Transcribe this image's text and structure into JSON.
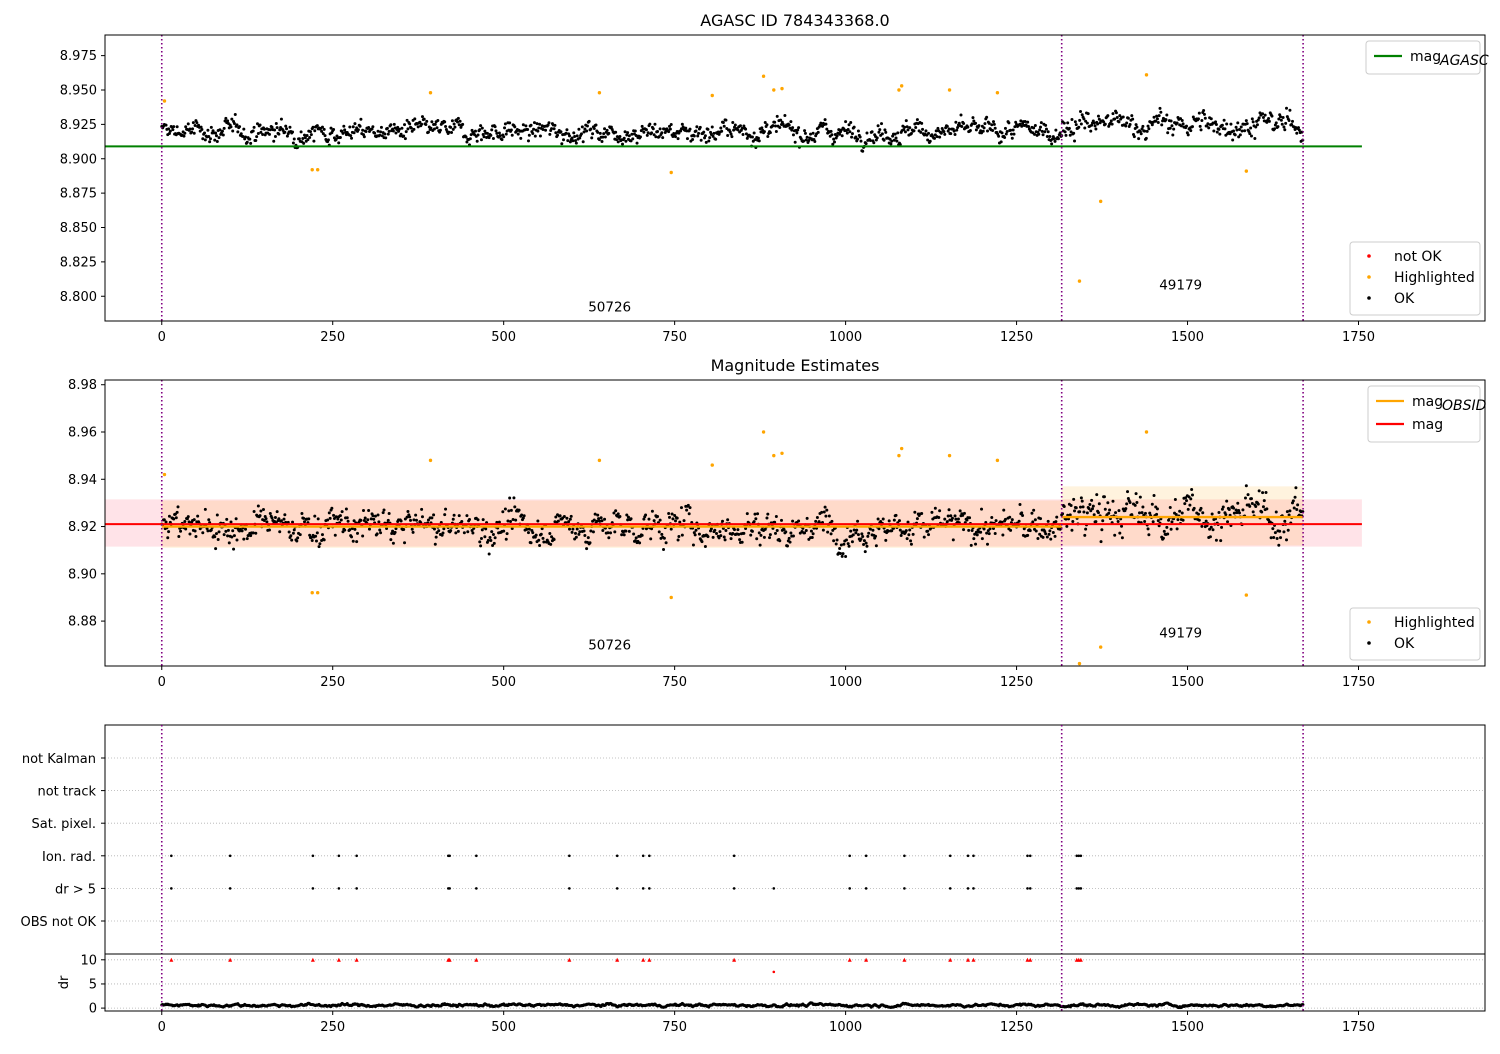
{
  "chart_data": [
    {
      "type": "scatter",
      "title": "AGASC ID 784343368.0",
      "xlim": [
        -83,
        1935
      ],
      "ylim": [
        8.782,
        8.99
      ],
      "xticks": [
        0,
        250,
        500,
        750,
        1000,
        1250,
        1500,
        1750
      ],
      "yticks": [
        8.8,
        8.825,
        8.85,
        8.875,
        8.9,
        8.925,
        8.95,
        8.975
      ],
      "yticks_labels": [
        "8.800",
        "8.825",
        "8.850",
        "8.875",
        "8.900",
        "8.925",
        "8.950",
        "8.975"
      ],
      "vlines": [
        0,
        1316,
        1669
      ],
      "vline_color": "#800080",
      "obsid_labels": [
        {
          "text": "50726",
          "x": 655,
          "y": 8.789
        },
        {
          "text": "49179",
          "x": 1490,
          "y": 8.805
        }
      ],
      "reference_line": {
        "name": "mag_AGASC",
        "legend_label": "mag",
        "legend_sub": "AGASC",
        "value": 8.909,
        "x": [
          -83,
          1755
        ],
        "color": "#008000"
      },
      "legend_lines": [
        {
          "label": "mag",
          "sub": "AGASC",
          "color": "#008000"
        }
      ],
      "legend_points": [
        {
          "label": "not OK",
          "color": "#ff0000"
        },
        {
          "label": "Highlighted",
          "color": "#ffa500"
        },
        {
          "label": "OK",
          "color": "#000000"
        }
      ],
      "series": [
        {
          "name": "OK",
          "color": "#000000",
          "generated": {
            "segments": [
              {
                "x0": 0,
                "x1": 1316,
                "step": 1.25,
                "mean": 8.92,
                "amp": 0.009
              },
              {
                "x0": 1316,
                "x1": 1669,
                "step": 1.25,
                "mean": 8.925,
                "amp": 0.011
              }
            ]
          }
        },
        {
          "name": "Highlighted",
          "color": "#ffa500",
          "points": [
            [
              4,
              8.942
            ],
            [
              220,
              8.892
            ],
            [
              228,
              8.892
            ],
            [
              393,
              8.948
            ],
            [
              640,
              8.948
            ],
            [
              745,
              8.89
            ],
            [
              805,
              8.946
            ],
            [
              880,
              8.96
            ],
            [
              895,
              8.95
            ],
            [
              907,
              8.951
            ],
            [
              1078,
              8.95
            ],
            [
              1082,
              8.953
            ],
            [
              1152,
              8.95
            ],
            [
              1222,
              8.948
            ],
            [
              1342,
              8.811
            ],
            [
              1373,
              8.869
            ],
            [
              1440,
              8.961
            ],
            [
              1586,
              8.891
            ]
          ]
        }
      ]
    },
    {
      "type": "scatter",
      "title": "Magnitude Estimates",
      "xlim": [
        -83,
        1935
      ],
      "ylim": [
        8.861,
        8.982
      ],
      "xticks": [
        0,
        250,
        500,
        750,
        1000,
        1250,
        1500,
        1750
      ],
      "yticks": [
        8.88,
        8.9,
        8.92,
        8.94,
        8.96,
        8.98
      ],
      "yticks_labels": [
        "8.88",
        "8.90",
        "8.92",
        "8.94",
        "8.96",
        "8.98"
      ],
      "vlines": [
        0,
        1316,
        1669
      ],
      "vline_color": "#800080",
      "obsid_labels": [
        {
          "text": "50726",
          "x": 655,
          "y": 8.868
        },
        {
          "text": "49179",
          "x": 1490,
          "y": 8.873
        }
      ],
      "mag_line": {
        "value": 8.921,
        "band": [
          8.9115,
          8.9315
        ],
        "x": [
          -83,
          1755
        ],
        "color": "#ff0000",
        "band_color": "#ffc0cb"
      },
      "obsid_lines": [
        {
          "x": [
            0,
            1316
          ],
          "value": 8.92,
          "band": [
            8.911,
            8.931
          ]
        },
        {
          "x": [
            1316,
            1669
          ],
          "value": 8.924,
          "band": [
            8.912,
            8.937
          ]
        }
      ],
      "obsid_color": "#ffa500",
      "legend_lines": [
        {
          "label": "mag",
          "sub": "OBSID",
          "color": "#ffa500"
        },
        {
          "label": "mag",
          "sub": "",
          "color": "#ff0000"
        }
      ],
      "legend_points": [
        {
          "label": "Highlighted",
          "color": "#ffa500"
        },
        {
          "label": "OK",
          "color": "#000000"
        }
      ],
      "series": [
        {
          "name": "OK",
          "color": "#000000",
          "generated": {
            "segments": [
              {
                "x0": 0,
                "x1": 1316,
                "step": 1.25,
                "mean": 8.92,
                "amp": 0.009
              },
              {
                "x0": 1316,
                "x1": 1669,
                "step": 1.25,
                "mean": 8.925,
                "amp": 0.011
              }
            ]
          }
        },
        {
          "name": "Highlighted",
          "color": "#ffa500",
          "points": [
            [
              4,
              8.942
            ],
            [
              220,
              8.892
            ],
            [
              228,
              8.892
            ],
            [
              393,
              8.948
            ],
            [
              640,
              8.948
            ],
            [
              745,
              8.89
            ],
            [
              805,
              8.946
            ],
            [
              880,
              8.96
            ],
            [
              895,
              8.95
            ],
            [
              907,
              8.951
            ],
            [
              1078,
              8.95
            ],
            [
              1082,
              8.953
            ],
            [
              1152,
              8.95
            ],
            [
              1222,
              8.948
            ],
            [
              1342,
              8.862
            ],
            [
              1373,
              8.869
            ],
            [
              1440,
              8.96
            ],
            [
              1586,
              8.891
            ]
          ]
        }
      ]
    },
    {
      "type": "scatter",
      "title": "",
      "xlim": [
        -83,
        1935
      ],
      "xticks": [
        0,
        250,
        500,
        750,
        1000,
        1250,
        1500,
        1750
      ],
      "vlines": [
        0,
        1316,
        1669
      ],
      "vline_color": "#800080",
      "flag_rows": [
        "not Kalman",
        "not track",
        "Sat. pixel.",
        "Ion. rad.",
        "dr > 5",
        "OBS not OK"
      ],
      "flag_events": {
        "Ion. rad.": [
          14,
          100,
          221,
          259,
          285,
          419,
          421,
          460,
          596,
          666,
          704,
          713,
          837,
          1006,
          1030,
          1086,
          1153,
          1179,
          1187,
          1266,
          1270,
          1338,
          1341,
          1344
        ],
        "dr > 5": [
          14,
          100,
          221,
          259,
          285,
          419,
          421,
          460,
          596,
          666,
          704,
          713,
          837,
          895,
          1006,
          1030,
          1086,
          1153,
          1179,
          1187,
          1266,
          1270,
          1338,
          1341,
          1344
        ]
      },
      "dr_panel": {
        "ylabel": "dr",
        "yticks": [
          0,
          5,
          10
        ],
        "ylim": [
          -0.6,
          11.2
        ],
        "clipped_markers": {
          "value": 10,
          "x": [
            14,
            100,
            221,
            259,
            285,
            419,
            421,
            460,
            596,
            666,
            704,
            713,
            837,
            1006,
            1030,
            1086,
            1153,
            1179,
            1187,
            1266,
            1270,
            1338,
            1341,
            1344
          ],
          "color": "#ff0000"
        },
        "outlier_points": [
          [
            895,
            7.5
          ]
        ],
        "baseline": {
          "x0": 0,
          "x1": 1669,
          "step": 1.25,
          "mean": 0.6,
          "amp": 0.35,
          "color": "#000000"
        }
      }
    }
  ]
}
